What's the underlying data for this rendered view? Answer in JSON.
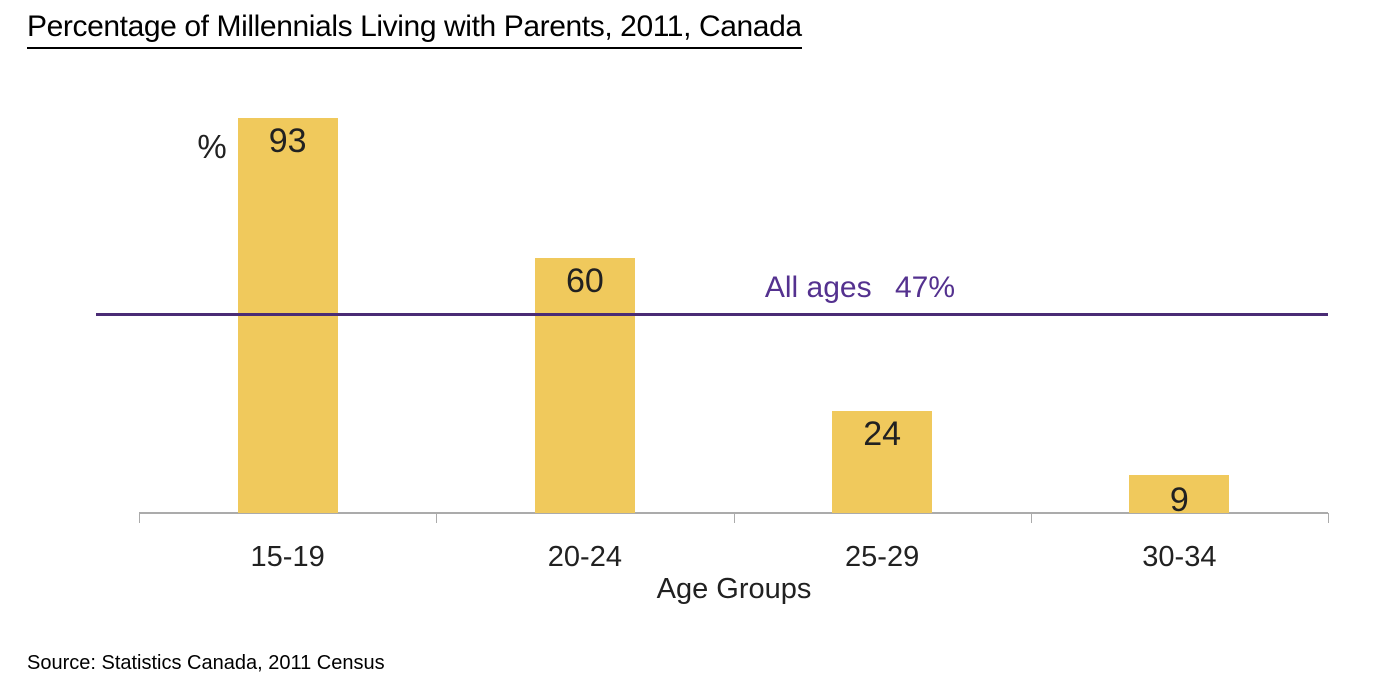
{
  "chart_data": {
    "type": "bar",
    "title": "Percentage of Millennials Living with Parents, 2011, Canada",
    "categories": [
      "15-19",
      "20-24",
      "25-29",
      "30-34"
    ],
    "values": [
      93,
      60,
      24,
      9
    ],
    "xlabel": "Age Groups",
    "ylabel": "%",
    "ylim": [
      0,
      100
    ],
    "grid": false,
    "legend_position": "none",
    "bar_color": "#F0C95C",
    "value_label_color": "#212121",
    "axis_color": "#ABABAB",
    "reference_line": {
      "label": "All ages",
      "value": 47,
      "value_label": "47%",
      "line_color": "#4A2B75",
      "text_color": "#54318F"
    }
  },
  "source_note": "Source: Statistics Canada, 2011 Census"
}
